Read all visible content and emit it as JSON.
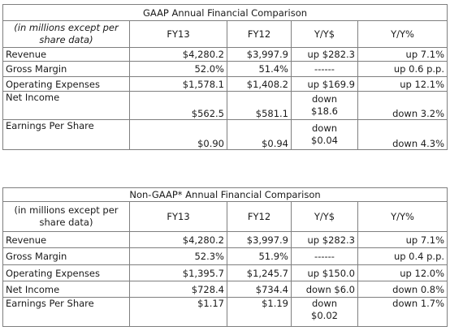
{
  "gaap": {
    "title": "GAAP Annual Financial Comparison",
    "header_label": "(in millions except per share data)",
    "columns": [
      "FY13",
      "FY12",
      "Y/Y$",
      "Y/Y%"
    ],
    "rows": [
      {
        "label": "Revenue",
        "fy13": "$4,280.2",
        "fy12": "$3,997.9",
        "yy_dollar": "up $282.3",
        "yy_pct": "up 7.1%"
      },
      {
        "label": "Gross Margin",
        "fy13": "52.0%",
        "fy12": "51.4%",
        "yy_dollar": "------",
        "yy_pct": "up 0.6 p.p."
      },
      {
        "label": "Operating Expenses",
        "fy13": "$1,578.1",
        "fy12": "$1,408.2",
        "yy_dollar": "up $169.9",
        "yy_pct": "up 12.1%"
      },
      {
        "label": "Net Income",
        "fy13": "$562.5",
        "fy12": "$581.1",
        "yy_dollar_line1": "down",
        "yy_dollar_line2": "$18.6",
        "yy_pct": "down 3.2%"
      },
      {
        "label": "Earnings Per Share",
        "fy13": "$0.90",
        "fy12": "$0.94",
        "yy_dollar_line1": "down",
        "yy_dollar_line2": "$0.04",
        "yy_pct": "down 4.3%"
      }
    ]
  },
  "nongaap": {
    "title": "Non-GAAP* Annual Financial Comparison",
    "header_label": "(in millions except per share data)",
    "columns": [
      "FY13",
      "FY12",
      "Y/Y$",
      "Y/Y%"
    ],
    "rows": [
      {
        "label": "Revenue",
        "fy13": "$4,280.2",
        "fy12": "$3,997.9",
        "yy_dollar": "up $282.3",
        "yy_pct": "up 7.1%"
      },
      {
        "label": "Gross Margin",
        "fy13": "52.3%",
        "fy12": "51.9%",
        "yy_dollar": "------",
        "yy_pct": "up 0.4 p.p."
      },
      {
        "label": "Operating Expenses",
        "fy13": "$1,395.7",
        "fy12": "$1,245.7",
        "yy_dollar": "up $150.0",
        "yy_pct": "up 12.0%"
      },
      {
        "label": "Net Income",
        "fy13": "$728.4",
        "fy12": "$734.4",
        "yy_dollar": "down $6.0",
        "yy_pct": "down 0.8%"
      },
      {
        "label": "Earnings Per Share",
        "fy13": "$1.17",
        "fy12": "$1.19",
        "yy_dollar_line1": "down",
        "yy_dollar_line2": "$0.02",
        "yy_pct": "down 1.7%"
      }
    ]
  }
}
